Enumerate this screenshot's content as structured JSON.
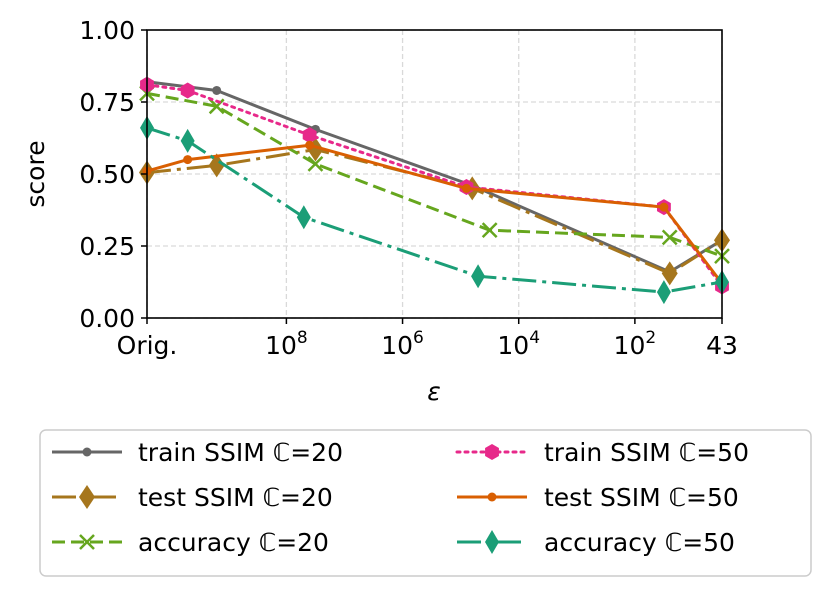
{
  "chart_data": {
    "type": "line",
    "title": "",
    "xlabel": "ε",
    "ylabel": "score",
    "ylim": [
      0,
      1
    ],
    "grid": true,
    "legend_position": "bottom",
    "x_ticks": [
      {
        "label": "Orig.",
        "base": "Orig.",
        "exp": "",
        "x": 0
      },
      {
        "label": "10^8",
        "base": "10",
        "exp": "8",
        "x": 2.4
      },
      {
        "label": "10^6",
        "base": "10",
        "exp": "6",
        "x": 4.4
      },
      {
        "label": "10^4",
        "base": "10",
        "exp": "4",
        "x": 6.4
      },
      {
        "label": "10^2",
        "base": "10",
        "exp": "2",
        "x": 8.4
      },
      {
        "label": "43",
        "base": "43",
        "exp": "",
        "x": 9.9
      }
    ],
    "y_ticks": [
      "0.00",
      "0.25",
      "0.50",
      "0.75",
      "1.00"
    ],
    "y_tick_values": [
      0,
      0.25,
      0.5,
      0.75,
      1.0
    ],
    "xlim": [
      0,
      9.9
    ],
    "series": [
      {
        "name": "train SSIM ℂ=20",
        "color": "#666666",
        "dash": "",
        "marker": "dot",
        "x": [
          0,
          1.2,
          2.9,
          5.6,
          9.0,
          9.9
        ],
        "values": [
          0.82,
          0.79,
          0.655,
          0.46,
          0.16,
          0.27
        ]
      },
      {
        "name": "test SSIM ℂ=20",
        "color": "#a6761d",
        "dash": "24,6,4,6",
        "marker": "diamond",
        "x": [
          0,
          1.2,
          2.9,
          5.6,
          9.0,
          9.9
        ],
        "values": [
          0.505,
          0.53,
          0.585,
          0.45,
          0.155,
          0.27
        ]
      },
      {
        "name": "accuracy ℂ=20",
        "color": "#66a61e",
        "dash": "13,6",
        "marker": "x",
        "x": [
          0,
          1.2,
          2.9,
          5.9,
          9.0,
          9.9
        ],
        "values": [
          0.78,
          0.735,
          0.535,
          0.305,
          0.28,
          0.215
        ]
      },
      {
        "name": "train SSIM ℂ=50",
        "color": "#e7298a",
        "dash": "3,5",
        "marker": "hexagon",
        "x": [
          0,
          0.7,
          2.8,
          5.5,
          8.9,
          9.9
        ],
        "values": [
          0.81,
          0.79,
          0.635,
          0.455,
          0.385,
          0.11
        ]
      },
      {
        "name": "test SSIM ℂ=50",
        "color": "#d95f02",
        "dash": "",
        "marker": "dot",
        "x": [
          0,
          0.7,
          2.8,
          5.5,
          8.9,
          9.9
        ],
        "values": [
          0.51,
          0.55,
          0.6,
          0.45,
          0.385,
          0.12
        ]
      },
      {
        "name": "accuracy ℂ=50",
        "color": "#1b9e77",
        "dash": "24,6,4,6",
        "marker": "thin_diamond",
        "x": [
          0,
          0.7,
          2.7,
          5.7,
          8.9,
          9.9
        ],
        "values": [
          0.66,
          0.615,
          0.35,
          0.145,
          0.09,
          0.125
        ]
      }
    ]
  }
}
